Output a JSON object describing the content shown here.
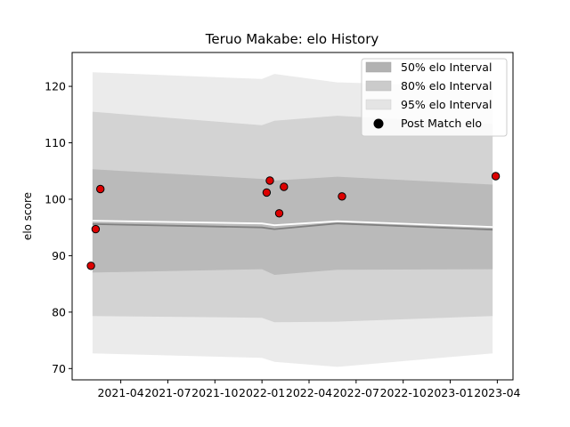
{
  "chart_data": {
    "type": "area",
    "title": "Teruo Makabe: elo History",
    "xlabel": "",
    "ylabel": "elo score",
    "x_tick_labels": [
      "2021-04",
      "2021-07",
      "2021-10",
      "2022-01",
      "2022-04",
      "2022-07",
      "2022-10",
      "2023-01",
      "2023-04"
    ],
    "x_tick_months": [
      3,
      6,
      9,
      12,
      15,
      18,
      21,
      24,
      27
    ],
    "xlim_months": [
      -0.1,
      28.0
    ],
    "y_ticks": [
      70,
      80,
      90,
      100,
      110,
      120
    ],
    "ylim": [
      68,
      126
    ],
    "legend": {
      "position": "top-right",
      "entries": [
        "50% elo Interval",
        "80% elo Interval",
        "95% elo Interval",
        "Post Match elo"
      ]
    },
    "band_x_months": [
      1.2,
      12.0,
      12.8,
      16.8,
      26.7
    ],
    "mean": [
      95.6,
      95.0,
      94.7,
      95.7,
      94.6
    ],
    "mean_after_match": [
      96.2,
      95.7,
      95.4,
      96.1,
      95.1
    ],
    "interval_50": {
      "upper": [
        105.3,
        103.6,
        103.3,
        104.0,
        102.6
      ],
      "lower": [
        87.0,
        87.6,
        86.6,
        87.5,
        87.6
      ]
    },
    "interval_80": {
      "upper": [
        115.5,
        113.1,
        113.9,
        114.8,
        113.3
      ],
      "lower": [
        79.3,
        79.0,
        78.2,
        78.3,
        79.3
      ]
    },
    "interval_95": {
      "upper": [
        122.5,
        121.3,
        122.2,
        120.7,
        119.9
      ],
      "lower": [
        72.7,
        71.9,
        71.2,
        70.3,
        72.7
      ]
    },
    "post_match": {
      "x_months": [
        1.1,
        1.4,
        1.7,
        12.3,
        12.5,
        13.1,
        13.4,
        17.1,
        26.9
      ],
      "values": [
        88.2,
        94.7,
        101.8,
        101.2,
        103.3,
        97.5,
        102.2,
        100.5,
        104.1
      ]
    },
    "colors": {
      "band_50": "#b2b2b2",
      "band_80": "#cbcbcb",
      "band_95": "#e4e4e4",
      "mean_line": "#808080",
      "post_line": "#ffffff",
      "points": "#dd0000"
    }
  }
}
